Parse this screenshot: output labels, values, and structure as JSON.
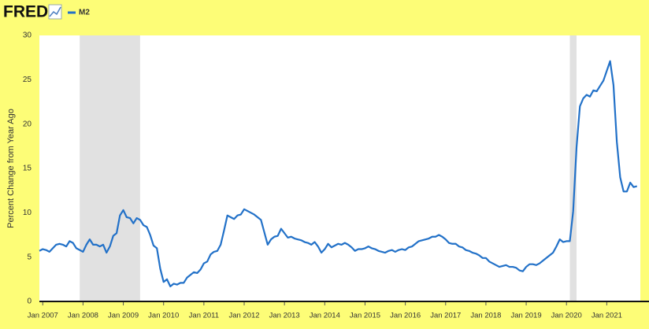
{
  "chart_data": {
    "type": "line",
    "logo": "FRED",
    "ylabel": "Percent Change from Year Ago",
    "x": [
      "2006-12",
      "2007-01",
      "2007-02",
      "2007-03",
      "2007-04",
      "2007-05",
      "2007-06",
      "2007-07",
      "2007-08",
      "2007-09",
      "2007-10",
      "2007-11",
      "2007-12",
      "2008-01",
      "2008-02",
      "2008-03",
      "2008-04",
      "2008-05",
      "2008-06",
      "2008-07",
      "2008-08",
      "2008-09",
      "2008-10",
      "2008-11",
      "2008-12",
      "2009-01",
      "2009-02",
      "2009-03",
      "2009-04",
      "2009-05",
      "2009-06",
      "2009-07",
      "2009-08",
      "2009-09",
      "2009-10",
      "2009-11",
      "2009-12",
      "2010-01",
      "2010-02",
      "2010-03",
      "2010-04",
      "2010-05",
      "2010-06",
      "2010-07",
      "2010-08",
      "2010-09",
      "2010-10",
      "2010-11",
      "2010-12",
      "2011-01",
      "2011-02",
      "2011-03",
      "2011-04",
      "2011-05",
      "2011-06",
      "2011-07",
      "2011-08",
      "2011-09",
      "2011-10",
      "2011-11",
      "2011-12",
      "2012-01",
      "2012-02",
      "2012-03",
      "2012-04",
      "2012-05",
      "2012-06",
      "2012-07",
      "2012-08",
      "2012-09",
      "2012-10",
      "2012-11",
      "2012-12",
      "2013-01",
      "2013-02",
      "2013-03",
      "2013-04",
      "2013-05",
      "2013-06",
      "2013-07",
      "2013-08",
      "2013-09",
      "2013-10",
      "2013-11",
      "2013-12",
      "2014-01",
      "2014-02",
      "2014-03",
      "2014-04",
      "2014-05",
      "2014-06",
      "2014-07",
      "2014-08",
      "2014-09",
      "2014-10",
      "2014-11",
      "2014-12",
      "2015-01",
      "2015-02",
      "2015-03",
      "2015-04",
      "2015-05",
      "2015-06",
      "2015-07",
      "2015-08",
      "2015-09",
      "2015-10",
      "2015-11",
      "2015-12",
      "2016-01",
      "2016-02",
      "2016-03",
      "2016-04",
      "2016-05",
      "2016-06",
      "2016-07",
      "2016-08",
      "2016-09",
      "2016-10",
      "2016-11",
      "2016-12",
      "2017-01",
      "2017-02",
      "2017-03",
      "2017-04",
      "2017-05",
      "2017-06",
      "2017-07",
      "2017-08",
      "2017-09",
      "2017-10",
      "2017-11",
      "2017-12",
      "2018-01",
      "2018-02",
      "2018-03",
      "2018-04",
      "2018-05",
      "2018-06",
      "2018-07",
      "2018-08",
      "2018-09",
      "2018-10",
      "2018-11",
      "2018-12",
      "2019-01",
      "2019-02",
      "2019-03",
      "2019-04",
      "2019-05",
      "2019-06",
      "2019-07",
      "2019-08",
      "2019-09",
      "2019-10",
      "2019-11",
      "2019-12",
      "2020-01",
      "2020-02",
      "2020-03",
      "2020-04",
      "2020-05",
      "2020-06",
      "2020-07",
      "2020-08",
      "2020-09",
      "2020-10",
      "2020-11",
      "2020-12",
      "2021-01",
      "2021-02",
      "2021-03",
      "2021-04",
      "2021-05",
      "2021-06",
      "2021-07",
      "2021-08",
      "2021-09",
      "2021-10"
    ],
    "series": [
      {
        "name": "M2",
        "color": "#2271c8",
        "values": [
          5.7,
          5.9,
          5.8,
          5.6,
          6.0,
          6.4,
          6.5,
          6.4,
          6.2,
          6.8,
          6.6,
          6.0,
          5.8,
          5.6,
          6.4,
          7.0,
          6.4,
          6.4,
          6.2,
          6.4,
          5.5,
          6.2,
          7.4,
          7.7,
          9.7,
          10.3,
          9.5,
          9.4,
          8.8,
          9.4,
          9.2,
          8.6,
          8.4,
          7.5,
          6.3,
          6.0,
          3.7,
          2.2,
          2.5,
          1.7,
          2.0,
          1.9,
          2.1,
          2.1,
          2.7,
          3.0,
          3.3,
          3.2,
          3.6,
          4.3,
          4.5,
          5.3,
          5.6,
          5.7,
          6.4,
          8.0,
          9.7,
          9.5,
          9.3,
          9.7,
          9.8,
          10.4,
          10.2,
          10.0,
          9.8,
          9.5,
          9.2,
          7.8,
          6.4,
          7.0,
          7.3,
          7.4,
          8.2,
          7.7,
          7.2,
          7.3,
          7.1,
          7.0,
          6.9,
          6.7,
          6.6,
          6.4,
          6.7,
          6.2,
          5.5,
          5.9,
          6.5,
          6.1,
          6.3,
          6.5,
          6.4,
          6.6,
          6.4,
          6.1,
          5.7,
          5.9,
          5.9,
          6.0,
          6.2,
          6.0,
          5.9,
          5.7,
          5.6,
          5.5,
          5.7,
          5.8,
          5.6,
          5.8,
          5.9,
          5.8,
          6.1,
          6.2,
          6.5,
          6.8,
          6.9,
          7.0,
          7.1,
          7.3,
          7.3,
          7.5,
          7.3,
          7.0,
          6.6,
          6.5,
          6.5,
          6.2,
          6.1,
          5.8,
          5.7,
          5.5,
          5.4,
          5.2,
          4.9,
          4.9,
          4.5,
          4.3,
          4.1,
          3.9,
          4.0,
          4.1,
          3.9,
          3.9,
          3.8,
          3.5,
          3.4,
          3.9,
          4.2,
          4.2,
          4.1,
          4.3,
          4.6,
          4.9,
          5.2,
          5.5,
          6.2,
          7.0,
          6.7,
          6.8,
          6.8,
          10.2,
          17.4,
          22.0,
          22.9,
          23.3,
          23.1,
          23.8,
          23.7,
          24.3,
          24.9,
          26.0,
          27.1,
          24.4,
          18.0,
          14.0,
          12.4,
          12.4,
          13.4,
          12.9,
          13.0
        ]
      }
    ],
    "recessions": [
      [
        "2007-12",
        "2009-06"
      ],
      [
        "2020-02",
        "2020-04"
      ]
    ],
    "xlim": [
      "2006-12",
      "2021-11"
    ],
    "xticks": [
      {
        "value": "2007-01",
        "label": "Jan 2007"
      },
      {
        "value": "2008-01",
        "label": "Jan 2008"
      },
      {
        "value": "2009-01",
        "label": "Jan 2009"
      },
      {
        "value": "2010-01",
        "label": "Jan 2010"
      },
      {
        "value": "2011-01",
        "label": "Jan 2011"
      },
      {
        "value": "2012-01",
        "label": "Jan 2012"
      },
      {
        "value": "2013-01",
        "label": "Jan 2013"
      },
      {
        "value": "2014-01",
        "label": "Jan 2014"
      },
      {
        "value": "2015-01",
        "label": "Jan 2015"
      },
      {
        "value": "2016-01",
        "label": "Jan 2016"
      },
      {
        "value": "2017-01",
        "label": "Jan 2017"
      },
      {
        "value": "2018-01",
        "label": "Jan 2018"
      },
      {
        "value": "2019-01",
        "label": "Jan 2019"
      },
      {
        "value": "2020-01",
        "label": "Jan 2020"
      },
      {
        "value": "2021-01",
        "label": "Jan 2021"
      }
    ],
    "ylim": [
      0,
      30
    ],
    "yticks": [
      0,
      5,
      10,
      15,
      20,
      25,
      30
    ],
    "grid": false
  }
}
